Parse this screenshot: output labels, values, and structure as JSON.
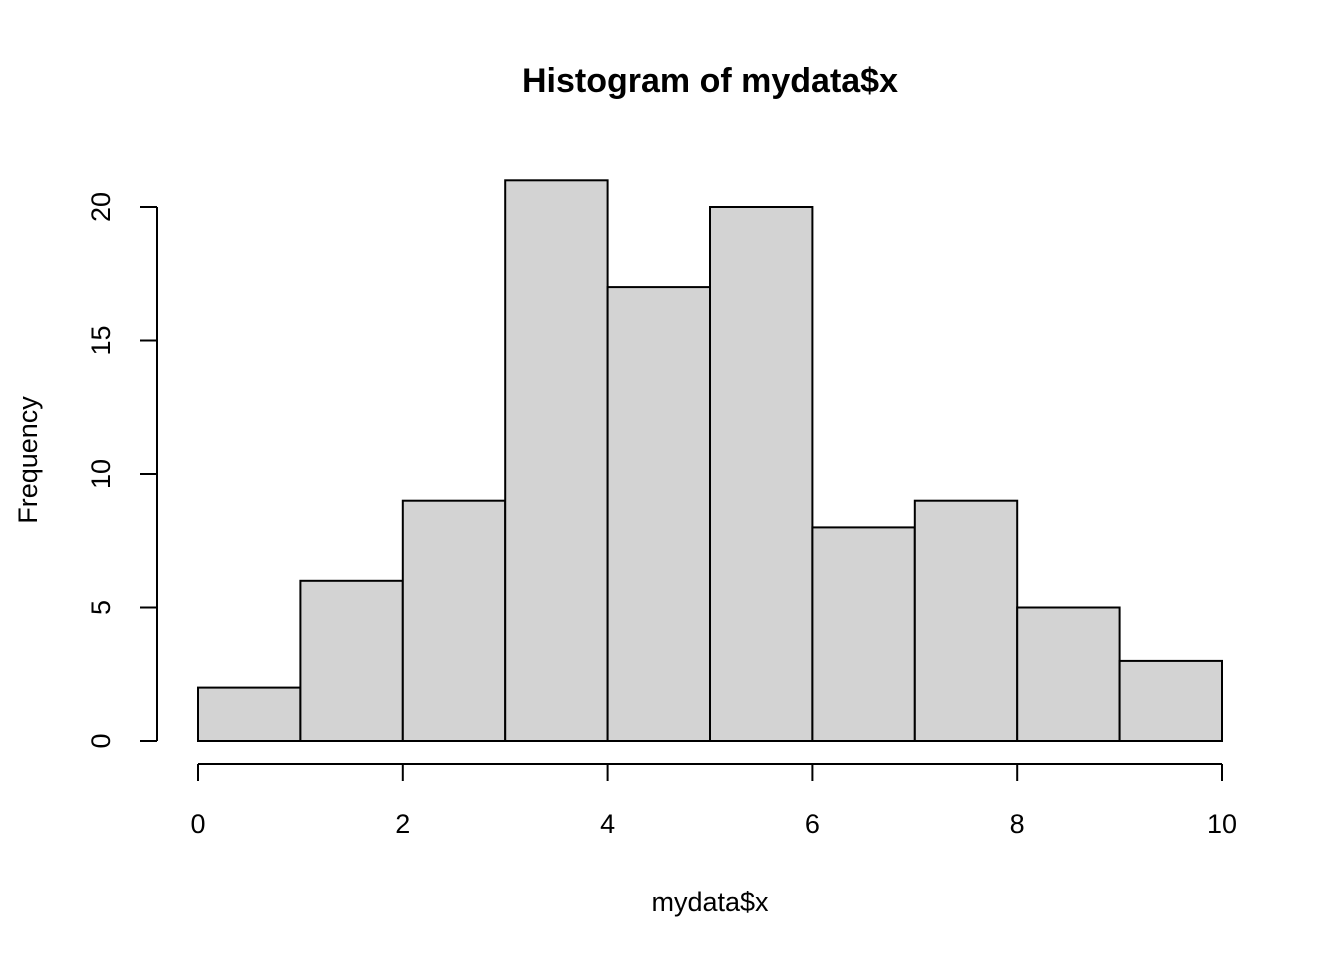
{
  "chart_data": {
    "type": "bar",
    "title": "Histogram of mydata$x",
    "xlabel": "mydata$x",
    "ylabel": "Frequency",
    "bins": [
      {
        "start": 0,
        "end": 1,
        "count": 2
      },
      {
        "start": 1,
        "end": 2,
        "count": 6
      },
      {
        "start": 2,
        "end": 3,
        "count": 9
      },
      {
        "start": 3,
        "end": 4,
        "count": 21
      },
      {
        "start": 4,
        "end": 5,
        "count": 17
      },
      {
        "start": 5,
        "end": 6,
        "count": 20
      },
      {
        "start": 6,
        "end": 7,
        "count": 8
      },
      {
        "start": 7,
        "end": 8,
        "count": 9
      },
      {
        "start": 8,
        "end": 9,
        "count": 5
      },
      {
        "start": 9,
        "end": 10,
        "count": 3
      }
    ],
    "xlim": [
      0,
      10
    ],
    "ylim": [
      0,
      21
    ],
    "x_ticks": [
      0,
      2,
      4,
      6,
      8,
      10
    ],
    "y_ticks": [
      0,
      5,
      10,
      15,
      20
    ],
    "bar_color": "#d3d3d3",
    "edge_color": "#000000",
    "grid": false,
    "legend": false
  }
}
